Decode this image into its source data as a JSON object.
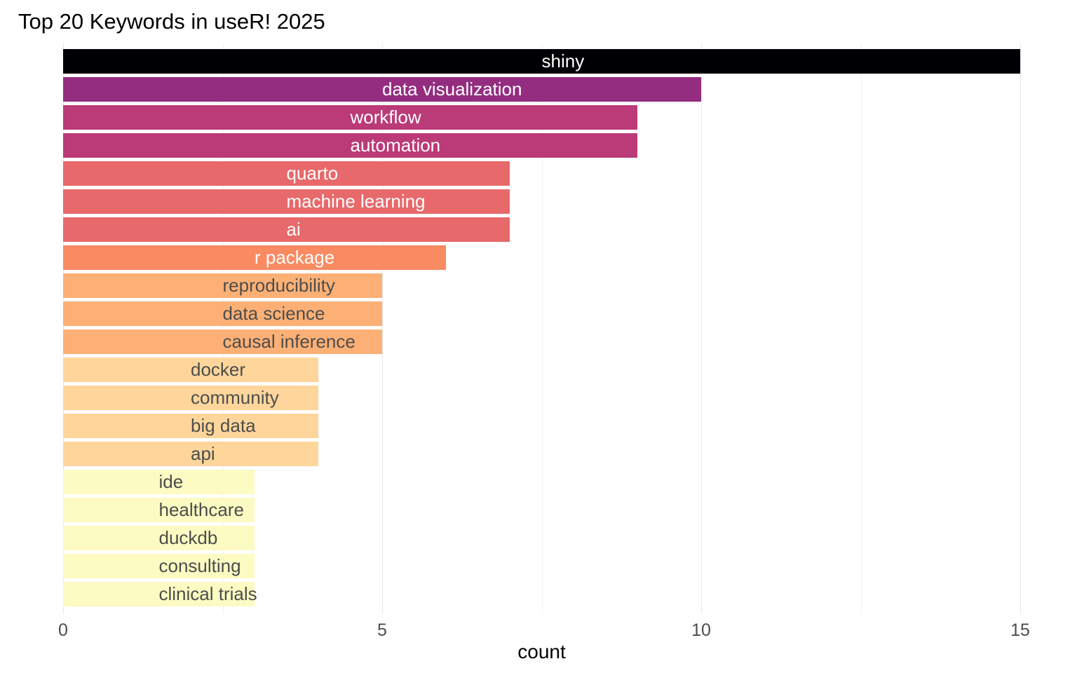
{
  "title": "Top 20 Keywords in useR! 2025",
  "chart_data": {
    "type": "bar",
    "orientation": "horizontal",
    "title": "Top 20 Keywords in useR! 2025",
    "xlabel": "count",
    "ylabel": "",
    "xlim": [
      0,
      15.75
    ],
    "x_major_ticks": [
      0,
      5,
      10,
      15
    ],
    "x_minor_gridlines": [
      2.5,
      7.5,
      12.5
    ],
    "grid": "vertical major and minor gridlines, light gray, no axis lines",
    "legend_position": "none",
    "bar_label_position": "inside bar, left-aligned starting at half the bar value",
    "categories": [
      "shiny",
      "data visualization",
      "workflow",
      "automation",
      "quarto",
      "machine learning",
      "ai",
      "r package",
      "reproducibility",
      "data science",
      "causal inference",
      "docker",
      "community",
      "big data",
      "api",
      "ide",
      "healthcare",
      "duckdb",
      "consulting",
      "clinical trials"
    ],
    "values": [
      15,
      10,
      9,
      9,
      7,
      7,
      7,
      6,
      5,
      5,
      5,
      4,
      4,
      4,
      4,
      3,
      3,
      3,
      3,
      3
    ],
    "bar_colors": [
      "#000004",
      "#942D80",
      "#BB3A78",
      "#BB3A78",
      "#E7696B",
      "#E7696B",
      "#E7696B",
      "#F98A62",
      "#FDB075",
      "#FDB075",
      "#FDB075",
      "#FED69B",
      "#FED69B",
      "#FED69B",
      "#FED69B",
      "#FBFBC2",
      "#FBFBC2",
      "#FBFBC2",
      "#FBFBC2",
      "#FBFBC2"
    ],
    "label_colors": [
      "#FFFFFF",
      "#FFFFFF",
      "#FFFFFF",
      "#FFFFFF",
      "#FFFFFF",
      "#FFFFFF",
      "#FFFFFF",
      "#FFFFFF",
      "#4D4D4D",
      "#4D4D4D",
      "#4D4D4D",
      "#4D4D4D",
      "#4D4D4D",
      "#4D4D4D",
      "#4D4D4D",
      "#4D4D4D",
      "#4D4D4D",
      "#4D4D4D",
      "#4D4D4D",
      "#4D4D4D"
    ]
  },
  "axis": {
    "x_tick_labels": [
      "0",
      "5",
      "10",
      "15"
    ],
    "x_title": "count"
  },
  "colors": {
    "background": "#FFFFFF",
    "grid_major": "#E7E7E7",
    "grid_minor": "#F1F1F1",
    "axis_text": "#4D4D4D",
    "title_text": "#000000"
  }
}
